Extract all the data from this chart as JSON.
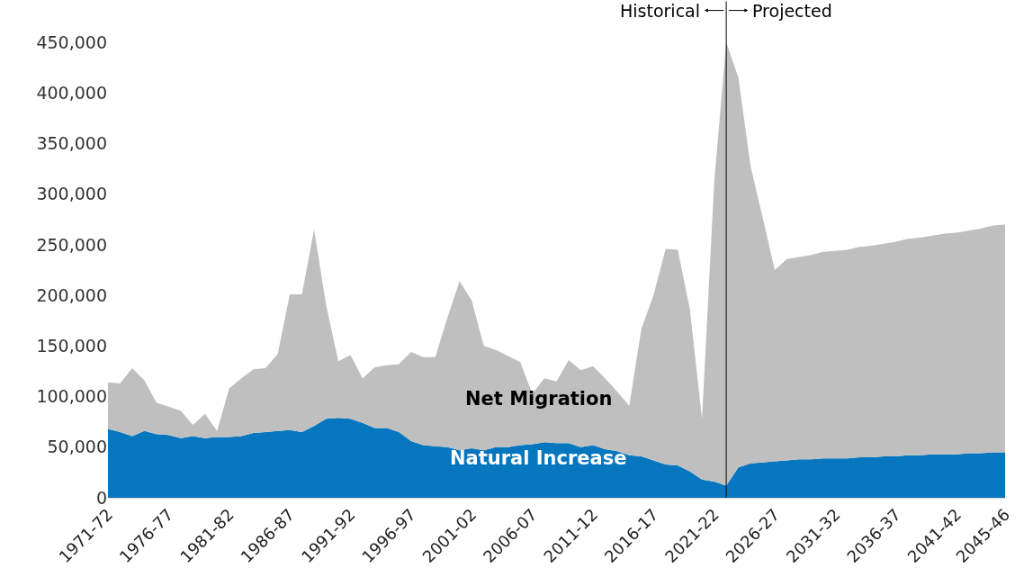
{
  "chart_data": {
    "type": "area",
    "stacked": true,
    "legend": false,
    "grid": false,
    "categories": [
      "1971-72",
      null,
      null,
      null,
      null,
      "1976-77",
      null,
      null,
      null,
      null,
      "1981-82",
      null,
      null,
      null,
      null,
      "1986-87",
      null,
      null,
      null,
      null,
      "1991-92",
      null,
      null,
      null,
      null,
      "1996-97",
      null,
      null,
      null,
      null,
      "2001-02",
      null,
      null,
      null,
      null,
      "2006-07",
      null,
      null,
      null,
      null,
      "2011-12",
      null,
      null,
      null,
      null,
      "2016-17",
      null,
      null,
      null,
      null,
      "2021-22",
      null,
      null,
      null,
      null,
      "2026-27",
      null,
      null,
      null,
      null,
      "2031-32",
      null,
      null,
      null,
      null,
      "2036-37",
      null,
      null,
      null,
      null,
      "2041-42",
      null,
      null,
      null,
      "2045-46"
    ],
    "ylim": [
      0,
      450000
    ],
    "yticks": [
      {
        "value": 0,
        "label": "0"
      },
      {
        "value": 50000,
        "label": "50,000"
      },
      {
        "value": 100000,
        "label": "100,000"
      },
      {
        "value": 150000,
        "label": "150,000"
      },
      {
        "value": 200000,
        "label": "200,000"
      },
      {
        "value": 250000,
        "label": "250,000"
      },
      {
        "value": 300000,
        "label": "300,000"
      },
      {
        "value": 350000,
        "label": "350,000"
      },
      {
        "value": 400000,
        "label": "400,000"
      },
      {
        "value": 450000,
        "label": "450,000"
      }
    ],
    "series": [
      {
        "name": "Natural Increase",
        "color": "#0677bf",
        "values": [
          68000,
          65000,
          61000,
          66000,
          63000,
          62000,
          59000,
          61000,
          59000,
          60000,
          60000,
          61000,
          64000,
          65000,
          66000,
          67000,
          65000,
          71000,
          78000,
          79000,
          78000,
          74000,
          69000,
          69000,
          65000,
          56000,
          52000,
          51000,
          50000,
          47000,
          49000,
          47000,
          50000,
          50000,
          52000,
          53000,
          55000,
          54000,
          54000,
          50000,
          52000,
          48000,
          46000,
          42000,
          41000,
          37000,
          33000,
          32000,
          26000,
          18000,
          16000,
          12000,
          30000,
          34000,
          35000,
          36000,
          37000,
          38000,
          38000,
          39000,
          39000,
          39000,
          40000,
          40000,
          41000,
          41000,
          42000,
          42000,
          43000,
          43000,
          43000,
          44000,
          44000,
          45000,
          45000
        ]
      },
      {
        "name": "Net Migration",
        "color": "#bfbfbf",
        "values": [
          46000,
          48000,
          67000,
          50000,
          31000,
          28000,
          27000,
          11000,
          24000,
          6000,
          48000,
          57000,
          63000,
          63000,
          76000,
          134000,
          136000,
          194000,
          112000,
          56000,
          63000,
          44000,
          60000,
          62000,
          67000,
          88000,
          87000,
          88000,
          128000,
          167000,
          146000,
          103000,
          96000,
          90000,
          82000,
          50000,
          63000,
          61000,
          82000,
          76000,
          78000,
          70000,
          59000,
          49000,
          126000,
          163000,
          213000,
          213000,
          160000,
          60000,
          295000,
          438000,
          385000,
          294000,
          242000,
          189000,
          199000,
          200000,
          202000,
          204000,
          205000,
          206000,
          208000,
          209000,
          210000,
          212000,
          214000,
          215000,
          216000,
          218000,
          219000,
          220000,
          222000,
          224000,
          225000
        ]
      }
    ],
    "annotations": [
      "Historical",
      "Projected"
    ]
  }
}
